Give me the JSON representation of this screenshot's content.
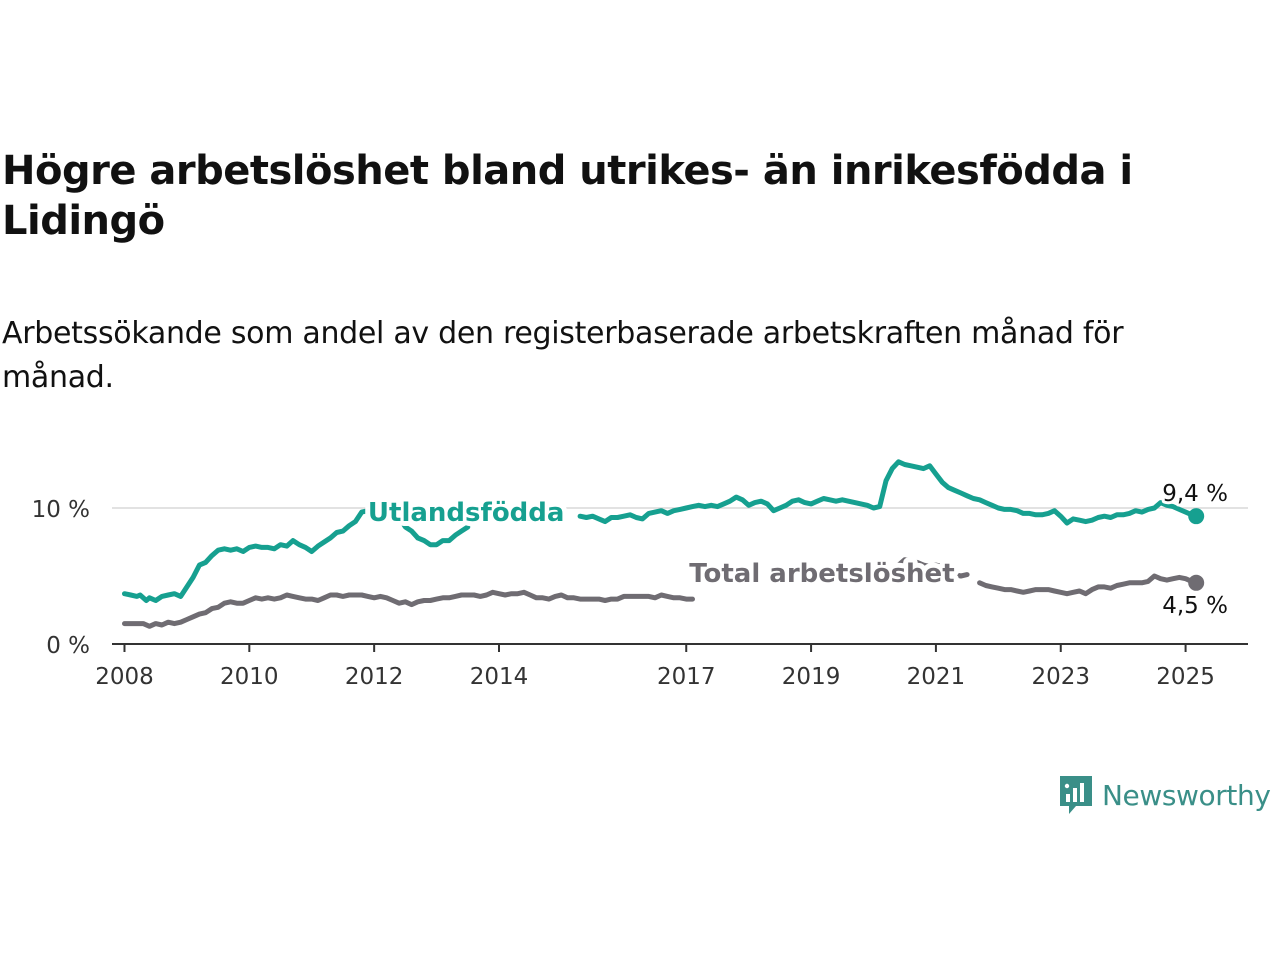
{
  "title": "Högre arbetslöshet bland utrikes- än inrikesfödda i Lidingö",
  "subtitle": "Arbetssökande som andel av den registerbaserade arbetskraften månad för månad.",
  "brand": {
    "name": "Newsworthy",
    "icon": "newsworthy-chart-bubble-icon",
    "color": "#3a8f88"
  },
  "chart_data": {
    "type": "line",
    "x_axis": {
      "min": 2007.8,
      "max": 2026.0,
      "ticks": [
        2008,
        2010,
        2012,
        2014,
        2017,
        2019,
        2021,
        2023,
        2025
      ],
      "tick_labels": [
        "2008",
        "2010",
        "2012",
        "2014",
        "2017",
        "2019",
        "2021",
        "2023",
        "2025"
      ]
    },
    "y_axis": {
      "min": 0,
      "max": 15,
      "ticks": [
        0,
        10
      ],
      "tick_labels": [
        "0 %",
        "10 %"
      ],
      "grid": true
    },
    "series": [
      {
        "name": "Utlandsfödda",
        "color": "#16a090",
        "end_label": "9,4 %",
        "segments": [
          {
            "x": [
              2008.0,
              2008.1,
              2008.2,
              2008.25,
              2008.35,
              2008.4,
              2008.5,
              2008.6,
              2008.7,
              2008.8,
              2008.9,
              2009.0,
              2009.1,
              2009.2,
              2009.3,
              2009.4,
              2009.5,
              2009.6,
              2009.7,
              2009.8,
              2009.9,
              2010.0,
              2010.1,
              2010.2,
              2010.3,
              2010.4,
              2010.5,
              2010.6,
              2010.7,
              2010.8,
              2010.9,
              2011.0,
              2011.1,
              2011.2,
              2011.3,
              2011.4,
              2011.5,
              2011.6,
              2011.7,
              2011.8,
              2011.9,
              2012.0,
              2012.1,
              2012.2,
              2012.3,
              2012.4,
              2012.5,
              2012.6,
              2012.7
            ],
            "y": [
              3.7,
              3.6,
              3.5,
              3.6,
              3.2,
              3.4,
              3.2,
              3.5,
              3.6,
              3.7,
              3.5,
              4.2,
              4.9,
              5.8,
              6.0,
              6.5,
              6.9,
              7.0,
              6.9,
              7.0,
              6.8,
              7.1,
              7.2,
              7.1,
              7.1,
              7.0,
              7.3,
              7.2,
              7.6,
              7.3,
              7.1,
              6.8,
              7.2,
              7.5,
              7.8,
              8.2,
              8.3,
              8.7,
              9.0,
              9.7,
              9.8,
              9.7,
              9.5,
              9.2,
              9.0,
              9.3,
              8.6,
              8.3,
              7.8
            ]
          },
          {
            "x": [
              2012.7,
              2012.8,
              2012.9,
              2013.0,
              2013.1,
              2013.2,
              2013.3,
              2013.4,
              2013.5
            ],
            "y": [
              7.8,
              7.6,
              7.3,
              7.3,
              7.6,
              7.6,
              8.0,
              8.3,
              8.6
            ]
          },
          {
            "x": [
              2015.3,
              2015.4,
              2015.5,
              2015.6,
              2015.7,
              2015.8,
              2015.9,
              2016.0,
              2016.1,
              2016.2,
              2016.3,
              2016.4,
              2016.5,
              2016.6,
              2016.7,
              2016.8,
              2016.9,
              2017.0,
              2017.1,
              2017.2,
              2017.3,
              2017.4,
              2017.5,
              2017.6,
              2017.7,
              2017.8,
              2017.9,
              2018.0,
              2018.1,
              2018.2,
              2018.3,
              2018.4,
              2018.5,
              2018.6,
              2018.7,
              2018.8,
              2018.9,
              2019.0,
              2019.1,
              2019.2,
              2019.3,
              2019.4,
              2019.5,
              2019.6,
              2019.7,
              2019.8,
              2019.9,
              2020.0,
              2020.1,
              2020.2,
              2020.3,
              2020.4,
              2020.5,
              2020.6,
              2020.7,
              2020.8,
              2020.9,
              2021.0,
              2021.1,
              2021.2,
              2021.3,
              2021.4,
              2021.5,
              2021.6,
              2021.7,
              2021.8,
              2021.9,
              2022.0,
              2022.1,
              2022.2,
              2022.3,
              2022.4,
              2022.5,
              2022.6,
              2022.7,
              2022.8,
              2022.9,
              2023.0,
              2023.1,
              2023.2,
              2023.3,
              2023.4,
              2023.5,
              2023.6,
              2023.7,
              2023.8,
              2023.9,
              2024.0,
              2024.1,
              2024.2,
              2024.3,
              2024.4,
              2024.5,
              2024.6,
              2024.7,
              2024.8,
              2024.9,
              2025.0,
              2025.1,
              2025.17
            ],
            "y": [
              9.4,
              9.3,
              9.4,
              9.2,
              9.0,
              9.3,
              9.3,
              9.4,
              9.5,
              9.3,
              9.2,
              9.6,
              9.7,
              9.8,
              9.6,
              9.8,
              9.9,
              10.0,
              10.1,
              10.2,
              10.1,
              10.2,
              10.1,
              10.3,
              10.5,
              10.8,
              10.6,
              10.2,
              10.4,
              10.5,
              10.3,
              9.8,
              10.0,
              10.2,
              10.5,
              10.6,
              10.4,
              10.3,
              10.5,
              10.7,
              10.6,
              10.5,
              10.6,
              10.5,
              10.4,
              10.3,
              10.2,
              10.0,
              10.1,
              12.0,
              12.9,
              13.4,
              13.2,
              13.1,
              13.0,
              12.9,
              13.1,
              12.5,
              11.9,
              11.5,
              11.3,
              11.1,
              10.9,
              10.7,
              10.6,
              10.4,
              10.2,
              10.0,
              9.9,
              9.9,
              9.8,
              9.6,
              9.6,
              9.5,
              9.5,
              9.6,
              9.8,
              9.4,
              8.9,
              9.2,
              9.1,
              9.0,
              9.1,
              9.3,
              9.4,
              9.3,
              9.5,
              9.5,
              9.6,
              9.8,
              9.7,
              9.9,
              10.0,
              10.4,
              10.2,
              10.1,
              9.9,
              9.7,
              9.5,
              9.4
            ]
          }
        ]
      },
      {
        "name": "Total arbetslöshet",
        "color": "#6f6c72",
        "end_label": "4,5 %",
        "segments": [
          {
            "x": [
              2008.0,
              2008.1,
              2008.2,
              2008.3,
              2008.4,
              2008.5,
              2008.6,
              2008.7,
              2008.8,
              2008.9,
              2009.0,
              2009.1,
              2009.2,
              2009.3,
              2009.4,
              2009.5,
              2009.6,
              2009.7,
              2009.8,
              2009.9,
              2010.0,
              2010.1,
              2010.2,
              2010.3,
              2010.4,
              2010.5,
              2010.6,
              2010.7,
              2010.8,
              2010.9,
              2011.0,
              2011.1,
              2011.2,
              2011.3,
              2011.4,
              2011.5,
              2011.6,
              2011.7,
              2011.8,
              2011.9,
              2012.0,
              2012.1,
              2012.2,
              2012.3,
              2012.4,
              2012.5,
              2012.6,
              2012.7,
              2012.8,
              2012.9,
              2013.0,
              2013.1,
              2013.2,
              2013.3,
              2013.4,
              2013.5,
              2013.6,
              2013.7,
              2013.8,
              2013.9,
              2014.0,
              2014.1,
              2014.2,
              2014.3,
              2014.4,
              2014.5,
              2014.6,
              2014.7,
              2014.8,
              2014.9,
              2015.0,
              2015.1,
              2015.2,
              2015.3,
              2015.4,
              2015.5,
              2015.6,
              2015.7,
              2015.8,
              2015.9,
              2016.0,
              2016.1,
              2016.2,
              2016.3,
              2016.4,
              2016.5,
              2016.6,
              2016.7,
              2016.8,
              2016.9,
              2017.0,
              2017.1
            ],
            "y": [
              1.5,
              1.5,
              1.5,
              1.5,
              1.3,
              1.5,
              1.4,
              1.6,
              1.5,
              1.6,
              1.8,
              2.0,
              2.2,
              2.3,
              2.6,
              2.7,
              3.0,
              3.1,
              3.0,
              3.0,
              3.2,
              3.4,
              3.3,
              3.4,
              3.3,
              3.4,
              3.6,
              3.5,
              3.4,
              3.3,
              3.3,
              3.2,
              3.4,
              3.6,
              3.6,
              3.5,
              3.6,
              3.6,
              3.6,
              3.5,
              3.4,
              3.5,
              3.4,
              3.2,
              3.0,
              3.1,
              2.9,
              3.1,
              3.2,
              3.2,
              3.3,
              3.4,
              3.4,
              3.5,
              3.6,
              3.6,
              3.6,
              3.5,
              3.6,
              3.8,
              3.7,
              3.6,
              3.7,
              3.7,
              3.8,
              3.6,
              3.4,
              3.4,
              3.3,
              3.5,
              3.6,
              3.4,
              3.4,
              3.3,
              3.3,
              3.3,
              3.3,
              3.2,
              3.3,
              3.3,
              3.5,
              3.5,
              3.5,
              3.5,
              3.5,
              3.4,
              3.6,
              3.5,
              3.4,
              3.4,
              3.3,
              3.3
            ]
          },
          {
            "x": [
              2020.3,
              2020.4,
              2020.5,
              2020.6,
              2020.7,
              2020.8,
              2020.9,
              2021.0,
              2021.1,
              2021.2,
              2021.3,
              2021.4,
              2021.5
            ],
            "y": [
              5.3,
              5.8,
              6.2,
              6.1,
              6.0,
              5.8,
              5.7,
              5.8,
              5.7,
              5.3,
              5.1,
              5.0,
              5.1
            ]
          },
          {
            "x": [
              2021.7,
              2021.8,
              2021.9,
              2022.0,
              2022.1,
              2022.2,
              2022.3,
              2022.4,
              2022.5,
              2022.6,
              2022.7,
              2022.8,
              2022.9,
              2023.0,
              2023.1,
              2023.2,
              2023.3,
              2023.4,
              2023.5,
              2023.6,
              2023.7,
              2023.8,
              2023.9,
              2024.0,
              2024.1,
              2024.2,
              2024.3,
              2024.4,
              2024.5,
              2024.6,
              2024.7,
              2024.8,
              2024.9,
              2025.0,
              2025.1,
              2025.17
            ],
            "y": [
              4.5,
              4.3,
              4.2,
              4.1,
              4.0,
              4.0,
              3.9,
              3.8,
              3.9,
              4.0,
              4.0,
              4.0,
              3.9,
              3.8,
              3.7,
              3.8,
              3.9,
              3.7,
              4.0,
              4.2,
              4.2,
              4.1,
              4.3,
              4.4,
              4.5,
              4.5,
              4.5,
              4.6,
              5.0,
              4.8,
              4.7,
              4.8,
              4.9,
              4.8,
              4.6,
              4.5
            ]
          }
        ]
      }
    ],
    "legend": "inline-labels"
  }
}
